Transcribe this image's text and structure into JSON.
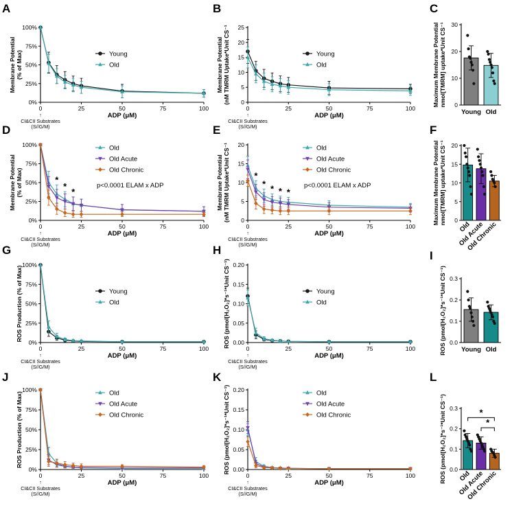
{
  "colors": {
    "young": "#1a1a1a",
    "old": "#3aa7ad",
    "oldAcute": "#6f3fb0",
    "oldChronic": "#c8651c",
    "barYoung": "#7f7f7f",
    "barOld": "#8ccfd2",
    "barOldDark": "#178b8a",
    "barAcute": "#6a2ea8",
    "barChronic": "#b5651d"
  },
  "common": {
    "xlabel": "ADP (μM)",
    "xticks": [
      0,
      25,
      50,
      75,
      100
    ],
    "substrate_arrow": "↑",
    "substrate_line1": "CI&CII Substrates",
    "substrate_line2": "(S//G/M)"
  },
  "chart_data": [
    {
      "id": "A",
      "letter": "A",
      "type": "line",
      "ylabel": [
        "Membrane Potential",
        "(% of Max)"
      ],
      "ylim": [
        0,
        100
      ],
      "yticks": [
        0,
        25,
        50,
        75,
        100
      ],
      "ytick_labels": [
        "0%",
        "25%",
        "50%",
        "75%",
        "100%"
      ],
      "x": [
        0,
        5,
        10,
        15,
        20,
        25,
        50,
        100
      ],
      "series": [
        {
          "name": "Young",
          "color": "young",
          "marker": "circle",
          "values": [
            100,
            53,
            37,
            30,
            25,
            22,
            15,
            12
          ],
          "err": [
            0,
            14,
            12,
            11,
            10,
            10,
            9,
            5
          ]
        },
        {
          "name": "Old",
          "color": "old",
          "marker": "triangle",
          "values": [
            100,
            52,
            35,
            27,
            23,
            20,
            14,
            12
          ],
          "err": [
            0,
            12,
            10,
            9,
            9,
            8,
            8,
            5
          ]
        }
      ],
      "legend": [
        "Young",
        "Old"
      ],
      "stars": [],
      "note": ""
    },
    {
      "id": "B",
      "letter": "B",
      "type": "line",
      "ylabel": [
        "Membrane Potential",
        "(nM TMRM Uptake*Unit CS⁻¹"
      ],
      "ylim": [
        0,
        25
      ],
      "yticks": [
        0,
        5,
        10,
        15,
        20,
        25
      ],
      "ytick_labels": [
        "0",
        "5",
        "10",
        "15",
        "20",
        "25"
      ],
      "x": [
        0,
        5,
        10,
        15,
        20,
        25,
        50,
        100
      ],
      "series": [
        {
          "name": "Young",
          "color": "young",
          "marker": "circle",
          "values": [
            17,
            10.5,
            8,
            7,
            6.2,
            5.8,
            4.8,
            4.5
          ],
          "err": [
            4,
            3.2,
            3,
            2.8,
            2.6,
            2.5,
            2.2,
            1.5
          ]
        },
        {
          "name": "Old",
          "color": "old",
          "marker": "triangle",
          "values": [
            15,
            9.5,
            7,
            6,
            5.5,
            5,
            4.2,
            3.8
          ],
          "err": [
            3.5,
            3,
            2.8,
            2.5,
            2.4,
            2.3,
            2,
            1.5
          ]
        }
      ],
      "legend": [
        "Young",
        "Old"
      ],
      "stars": [],
      "note": ""
    },
    {
      "id": "C",
      "letter": "C",
      "type": "bar",
      "ylabel": [
        "Maximum Membrane Potential",
        "nmol[TMRM] uptake*Unit CS⁻¹"
      ],
      "ylim": [
        0,
        30
      ],
      "yticks": [
        0,
        10,
        20,
        30
      ],
      "ytick_labels": [
        "0",
        "10",
        "20",
        "30"
      ],
      "categories": [
        "Young",
        "Old"
      ],
      "values": [
        17.6,
        14.8
      ],
      "err": [
        4.5,
        4.5
      ],
      "bar_colors": [
        "barYoung",
        "barOld"
      ],
      "points": [
        [
          26,
          21,
          18,
          17.5,
          16,
          15,
          13,
          8
        ],
        [
          20,
          19,
          17,
          16,
          15,
          14,
          12,
          9,
          8
        ]
      ],
      "rotate_labels": false,
      "brackets": []
    },
    {
      "id": "D",
      "letter": "D",
      "type": "line",
      "ylabel": [
        "Membrane Potential",
        "(% of Max)"
      ],
      "ylim": [
        0,
        100
      ],
      "yticks": [
        0,
        25,
        50,
        75,
        100
      ],
      "ytick_labels": [
        "0%",
        "25%",
        "50%",
        "75%",
        "100%"
      ],
      "x": [
        0,
        5,
        10,
        15,
        20,
        25,
        50,
        100
      ],
      "series": [
        {
          "name": "Old",
          "color": "old",
          "marker": "triangle",
          "values": [
            100,
            50,
            35,
            28,
            22,
            20,
            14,
            12
          ],
          "err": [
            0,
            15,
            12,
            10,
            9,
            8,
            7,
            6
          ]
        },
        {
          "name": "Old Acute",
          "color": "oldAcute",
          "marker": "invtriangle",
          "values": [
            100,
            45,
            30,
            25,
            22,
            20,
            14,
            12
          ],
          "err": [
            0,
            13,
            11,
            10,
            9,
            8,
            7,
            6
          ]
        },
        {
          "name": "Old Chronic",
          "color": "oldChronic",
          "marker": "diamond",
          "values": [
            100,
            30,
            15,
            10,
            8,
            8,
            8,
            8
          ],
          "err": [
            0,
            10,
            7,
            5,
            4,
            4,
            3,
            3
          ]
        }
      ],
      "legend": [
        "Old",
        "Old Acute",
        "Old Chronic"
      ],
      "stars": [
        [
          10,
          1
        ],
        [
          15,
          1
        ],
        [
          20,
          1
        ]
      ],
      "note": "p<0.0001 ELAM x ADP"
    },
    {
      "id": "E",
      "letter": "E",
      "type": "line",
      "ylabel": [
        "Membrane Potential",
        "(nM TMRM Uptake*Unit CS⁻¹"
      ],
      "ylim": [
        0,
        20
      ],
      "yticks": [
        0,
        5,
        10,
        15,
        20
      ],
      "ytick_labels": [
        "0",
        "5",
        "10",
        "15",
        "20"
      ],
      "x": [
        0,
        5,
        10,
        15,
        20,
        25,
        50,
        100
      ],
      "series": [
        {
          "name": "Old",
          "color": "old",
          "marker": "triangle",
          "values": [
            14.5,
            8.5,
            6.5,
            5.5,
            5,
            4.8,
            4,
            3.5
          ],
          "err": [
            2.5,
            2,
            1.8,
            1.5,
            1.4,
            1.3,
            1.2,
            1
          ]
        },
        {
          "name": "Old Acute",
          "color": "oldAcute",
          "marker": "invtriangle",
          "values": [
            13.5,
            7.5,
            5.5,
            4.8,
            4.5,
            4.2,
            3.5,
            3.2
          ],
          "err": [
            2.5,
            2,
            1.8,
            1.5,
            1.4,
            1.3,
            1.2,
            1
          ]
        },
        {
          "name": "Old Chronic",
          "color": "oldChronic",
          "marker": "diamond",
          "values": [
            10.5,
            4.5,
            3,
            2.7,
            2.5,
            2.5,
            2.5,
            2.5
          ],
          "err": [
            1.5,
            1.5,
            1.2,
            1,
            1,
            1,
            1,
            1
          ]
        }
      ],
      "legend": [
        "Old",
        "Old Acute",
        "Old Chronic"
      ],
      "stars": [
        [
          5,
          1
        ],
        [
          10,
          1
        ],
        [
          15,
          1
        ],
        [
          20,
          1
        ],
        [
          25,
          1
        ]
      ],
      "note": "p<0.0001 ELAM x ADP"
    },
    {
      "id": "F",
      "letter": "F",
      "type": "bar",
      "ylabel": [
        "Maximum Membrane Potential",
        "nmol[TMRM] uptake*Unit CS⁻¹"
      ],
      "ylim": [
        0,
        20
      ],
      "yticks": [
        0,
        5,
        10,
        15,
        20
      ],
      "ytick_labels": [
        "0",
        "5",
        "10",
        "15",
        "20"
      ],
      "categories": [
        "Old",
        "Old Acute",
        "Old Chronic"
      ],
      "values": [
        14.8,
        13.8,
        10.5
      ],
      "err": [
        4.5,
        4,
        1.5
      ],
      "bar_colors": [
        "barOldDark",
        "barAcute",
        "barChronic"
      ],
      "points": [
        [
          20,
          18,
          17,
          15,
          14,
          13,
          12,
          9,
          7
        ],
        [
          19,
          17,
          16,
          15,
          14,
          13,
          12,
          9,
          7
        ],
        [
          13,
          12,
          11,
          10.5,
          10,
          9
        ]
      ],
      "rotate_labels": true,
      "brackets": []
    },
    {
      "id": "G",
      "letter": "G",
      "type": "line",
      "ylabel": [
        "ROS Production (% of Max)"
      ],
      "ylim": [
        0,
        100
      ],
      "yticks": [
        0,
        25,
        50,
        75,
        100
      ],
      "ytick_labels": [
        "0%",
        "25%",
        "50%",
        "75%",
        "100%"
      ],
      "x": [
        0,
        5,
        10,
        15,
        20,
        25,
        50,
        100
      ],
      "series": [
        {
          "name": "Young",
          "color": "young",
          "marker": "circle",
          "values": [
            100,
            14,
            6,
            3,
            2,
            1.5,
            1,
            1
          ],
          "err": [
            0,
            6,
            3,
            2,
            1,
            1,
            0.5,
            0.5
          ]
        },
        {
          "name": "Old",
          "color": "old",
          "marker": "triangle",
          "values": [
            100,
            20,
            8,
            4,
            2.5,
            2,
            1,
            1
          ],
          "err": [
            0,
            8,
            4,
            2,
            1,
            1,
            0.5,
            0.5
          ]
        }
      ],
      "legend": [
        "Young",
        "Old"
      ],
      "stars": [],
      "note": ""
    },
    {
      "id": "H",
      "letter": "H",
      "type": "line",
      "ylabel": [
        "ROS (pmol[H₂O₂]*s⁻¹*Unit CS⁻¹)"
      ],
      "ylim": [
        0,
        0.2
      ],
      "yticks": [
        0,
        0.05,
        0.1,
        0.15,
        0.2
      ],
      "ytick_labels": [
        "0.00",
        "0.05",
        "0.10",
        "0.15",
        "0.20"
      ],
      "x": [
        0,
        5,
        10,
        15,
        20,
        25,
        50,
        100
      ],
      "series": [
        {
          "name": "Young",
          "color": "young",
          "marker": "circle",
          "values": [
            0.12,
            0.02,
            0.008,
            0.005,
            0.004,
            0.003,
            0.002,
            0.002
          ],
          "err": [
            0.02,
            0.01,
            0.004,
            0.002,
            0.002,
            0.001,
            0.001,
            0.001
          ]
        },
        {
          "name": "Old",
          "color": "old",
          "marker": "triangle",
          "values": [
            0.115,
            0.025,
            0.01,
            0.006,
            0.004,
            0.003,
            0.002,
            0.002
          ],
          "err": [
            0.02,
            0.012,
            0.005,
            0.003,
            0.002,
            0.001,
            0.001,
            0.001
          ]
        }
      ],
      "legend": [
        "Young",
        "Old"
      ],
      "stars": [],
      "note": ""
    },
    {
      "id": "I",
      "letter": "I",
      "type": "bar",
      "ylabel": [
        "ROS (pmol[H₂O₂]*s⁻¹*Unit CS⁻¹)"
      ],
      "ylim": [
        0,
        0.3
      ],
      "yticks": [
        0,
        0.1,
        0.2,
        0.3
      ],
      "ytick_labels": [
        "0.0",
        "0.1",
        "0.2",
        "0.3"
      ],
      "categories": [
        "Young",
        "Old"
      ],
      "values": [
        0.155,
        0.142
      ],
      "err": [
        0.055,
        0.035
      ],
      "bar_colors": [
        "barYoung",
        "barOldDark"
      ],
      "points": [
        [
          0.24,
          0.2,
          0.17,
          0.16,
          0.14,
          0.12,
          0.1,
          0.08
        ],
        [
          0.19,
          0.17,
          0.16,
          0.15,
          0.14,
          0.13,
          0.12,
          0.1,
          0.09
        ]
      ],
      "rotate_labels": false,
      "brackets": []
    },
    {
      "id": "J",
      "letter": "J",
      "type": "line",
      "ylabel": [
        "ROS Production (% of Max)"
      ],
      "ylim": [
        0,
        100
      ],
      "yticks": [
        0,
        25,
        50,
        75,
        100
      ],
      "ytick_labels": [
        "0%",
        "25%",
        "50%",
        "75%",
        "100%"
      ],
      "x": [
        0,
        5,
        10,
        15,
        20,
        25,
        50,
        100
      ],
      "series": [
        {
          "name": "Old",
          "color": "old",
          "marker": "triangle",
          "values": [
            100,
            20,
            8,
            4,
            3,
            2,
            1.5,
            1.5
          ],
          "err": [
            0,
            8,
            4,
            2,
            1,
            1,
            1,
            1
          ]
        },
        {
          "name": "Old Acute",
          "color": "oldAcute",
          "marker": "invtriangle",
          "values": [
            100,
            12,
            6,
            4,
            3,
            2.5,
            2,
            2
          ],
          "err": [
            0,
            6,
            3,
            2,
            1,
            1,
            1,
            1
          ]
        },
        {
          "name": "Old Chronic",
          "color": "oldChronic",
          "marker": "diamond",
          "values": [
            100,
            10,
            8,
            6,
            5,
            4,
            4,
            3
          ],
          "err": [
            0,
            6,
            5,
            4,
            3,
            3,
            2,
            2
          ]
        }
      ],
      "legend": [
        "Old",
        "Old Acute",
        "Old Chronic"
      ],
      "stars": [],
      "note": ""
    },
    {
      "id": "K",
      "letter": "K",
      "type": "line",
      "ylabel": [
        "ROS (pmol[H₂O₂]*s⁻¹*Unit CS⁻¹)"
      ],
      "ylim": [
        0,
        0.2
      ],
      "yticks": [
        0,
        0.05,
        0.1,
        0.15,
        0.2
      ],
      "ytick_labels": [
        "0.00",
        "0.05",
        "0.10",
        "0.15",
        "0.20"
      ],
      "x": [
        0,
        5,
        10,
        15,
        20,
        25,
        50,
        100
      ],
      "series": [
        {
          "name": "Old",
          "color": "old",
          "marker": "triangle",
          "values": [
            0.1,
            0.02,
            0.008,
            0.005,
            0.004,
            0.003,
            0.002,
            0.002
          ],
          "err": [
            0.015,
            0.01,
            0.004,
            0.002,
            0.002,
            0.001,
            0.001,
            0.001
          ]
        },
        {
          "name": "Old Acute",
          "color": "oldAcute",
          "marker": "invtriangle",
          "values": [
            0.105,
            0.015,
            0.006,
            0.004,
            0.003,
            0.003,
            0.002,
            0.002
          ],
          "err": [
            0.015,
            0.008,
            0.003,
            0.002,
            0.001,
            0.001,
            0.001,
            0.001
          ]
        },
        {
          "name": "Old Chronic",
          "color": "oldChronic",
          "marker": "diamond",
          "values": [
            0.07,
            0.01,
            0.005,
            0.004,
            0.003,
            0.003,
            0.002,
            0.002
          ],
          "err": [
            0.012,
            0.006,
            0.003,
            0.002,
            0.001,
            0.001,
            0.001,
            0.001
          ]
        }
      ],
      "legend": [
        "Old",
        "Old Acute",
        "Old Chronic"
      ],
      "stars": [],
      "note": ""
    },
    {
      "id": "L",
      "letter": "L",
      "type": "bar",
      "ylabel": [
        "ROS (pmol[H₂O₂]*s⁻¹*Unit CS⁻¹)"
      ],
      "ylim": [
        0,
        0.3
      ],
      "yticks": [
        0,
        0.1,
        0.2,
        0.3
      ],
      "ytick_labels": [
        "0.0",
        "0.1",
        "0.2",
        "0.3"
      ],
      "categories": [
        "Old",
        "Old Acute",
        "Old Chronic"
      ],
      "values": [
        0.142,
        0.13,
        0.08
      ],
      "err": [
        0.035,
        0.03,
        0.02
      ],
      "bar_colors": [
        "barOldDark",
        "barAcute",
        "barChronic"
      ],
      "points": [
        [
          0.19,
          0.17,
          0.16,
          0.15,
          0.14,
          0.13,
          0.12,
          0.1,
          0.09
        ],
        [
          0.17,
          0.16,
          0.15,
          0.14,
          0.13,
          0.12,
          0.11,
          0.1,
          0.09
        ],
        [
          0.1,
          0.09,
          0.085,
          0.08,
          0.07,
          0.06
        ]
      ],
      "rotate_labels": true,
      "brackets": [
        {
          "from": 0,
          "to": 2,
          "y": 0.255,
          "label": "*"
        },
        {
          "from": 1,
          "to": 2,
          "y": 0.205,
          "label": "*"
        }
      ]
    }
  ]
}
